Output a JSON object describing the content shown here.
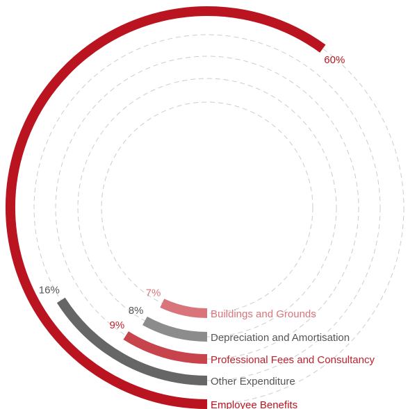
{
  "chart_data": {
    "type": "radial-bar",
    "series": [
      {
        "category": "Employee Benefits",
        "value": 60,
        "label": "60%",
        "color": "#b9141f"
      },
      {
        "category": "Other Expenditure",
        "value": 16,
        "label": "16%",
        "color": "#666666"
      },
      {
        "category": "Professional Fees and Consultancy",
        "value": 9,
        "label": "9%",
        "color": "#c8444c"
      },
      {
        "category": "Depreciation and Amortisation",
        "value": 8,
        "label": "8%",
        "color": "#8c8c8c"
      },
      {
        "category": "Buildings and Grounds",
        "value": 7,
        "label": "7%",
        "color": "#d9747b"
      }
    ],
    "max_value": 100,
    "label_colors": {
      "Employee Benefits": "#b9141f",
      "Other Expenditure": "#555555",
      "Professional Fees and Consultancy": "#c0202a",
      "Depreciation and Amortisation": "#555555",
      "Buildings and Grounds": "#d9747b"
    },
    "pct_colors": {
      "Employee Benefits": "#b9141f",
      "Other Expenditure": "#555555",
      "Professional Fees and Consultancy": "#c0202a",
      "Depreciation and Amortisation": "#555555",
      "Buildings and Grounds": "#d9747b"
    },
    "track_color": "#cccccc",
    "legend_placement": "bottom-center, beside bar start"
  }
}
